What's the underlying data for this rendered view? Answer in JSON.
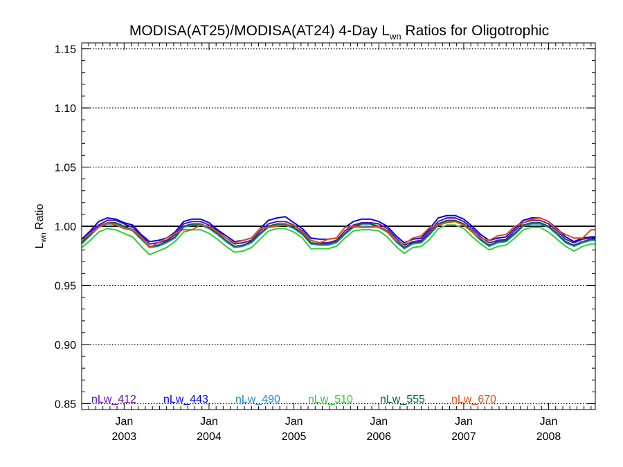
{
  "chart_data": {
    "type": "line",
    "title": {
      "prefix": "MODISA(AT25)/MODISA(AT24) 4-Day L",
      "subscript": "wn",
      "suffix": " Ratios for Oligotrophic"
    },
    "ylabel": {
      "main": "L",
      "subscript": "wn",
      "suffix": " Ratio"
    },
    "xlim": [
      2002.5,
      2008.55
    ],
    "ylim": [
      0.845,
      1.155
    ],
    "yticks": [
      0.85,
      0.9,
      0.95,
      1.0,
      1.05,
      1.1,
      1.15
    ],
    "ytick_labels": [
      "0.85",
      "0.90",
      "0.95",
      "1.00",
      "1.05",
      "1.10",
      "1.15"
    ],
    "xticks": [
      {
        "x": 2003.0,
        "month": "Jan",
        "year": "2003"
      },
      {
        "x": 2004.0,
        "month": "Jan",
        "year": "2004"
      },
      {
        "x": 2005.0,
        "month": "Jan",
        "year": "2005"
      },
      {
        "x": 2006.0,
        "month": "Jan",
        "year": "2006"
      },
      {
        "x": 2007.0,
        "month": "Jan",
        "year": "2007"
      },
      {
        "x": 2008.0,
        "month": "Jan",
        "year": "2008"
      }
    ],
    "grid": "dotted horizontal at major y ticks",
    "reference_line": 1.0,
    "legend_position": "bottom",
    "x": [
      2002.5,
      2002.6,
      2002.7,
      2002.8,
      2002.9,
      2003.0,
      2003.1,
      2003.2,
      2003.3,
      2003.4,
      2003.5,
      2003.6,
      2003.7,
      2003.8,
      2003.9,
      2004.0,
      2004.1,
      2004.2,
      2004.3,
      2004.4,
      2004.5,
      2004.6,
      2004.7,
      2004.8,
      2004.9,
      2005.0,
      2005.1,
      2005.2,
      2005.3,
      2005.4,
      2005.5,
      2005.6,
      2005.7,
      2005.8,
      2005.9,
      2006.0,
      2006.1,
      2006.2,
      2006.3,
      2006.4,
      2006.5,
      2006.6,
      2006.7,
      2006.8,
      2006.9,
      2007.0,
      2007.1,
      2007.2,
      2007.3,
      2007.4,
      2007.5,
      2007.6,
      2007.7,
      2007.8,
      2007.9,
      2008.0,
      2008.1,
      2008.2,
      2008.3,
      2008.4,
      2008.5,
      2008.55
    ],
    "series": [
      {
        "name": "nLw_412",
        "color": "#6a0dad",
        "values": [
          0.988,
          0.995,
          1.001,
          1.005,
          1.005,
          1.002,
          0.999,
          0.992,
          0.985,
          0.986,
          0.988,
          0.993,
          1.002,
          1.004,
          1.004,
          1.001,
          0.996,
          0.99,
          0.985,
          0.986,
          0.988,
          0.996,
          1.002,
          1.004,
          1.004,
          1.001,
          0.996,
          0.988,
          0.986,
          0.986,
          0.988,
          0.996,
          1.001,
          1.003,
          1.003,
          1.002,
          0.998,
          0.99,
          0.984,
          0.987,
          0.988,
          0.996,
          1.004,
          1.007,
          1.007,
          1.004,
          0.998,
          0.991,
          0.986,
          0.988,
          0.989,
          0.996,
          1.003,
          1.005,
          1.005,
          1.002,
          0.996,
          0.989,
          0.986,
          0.989,
          0.99,
          0.99
        ]
      },
      {
        "name": "nLw_443",
        "color": "#0000ee",
        "values": [
          0.989,
          0.996,
          1.004,
          1.007,
          1.006,
          1.003,
          1.001,
          0.993,
          0.987,
          0.988,
          0.99,
          0.995,
          1.004,
          1.006,
          1.006,
          1.003,
          0.997,
          0.992,
          0.987,
          0.988,
          0.99,
          0.998,
          1.005,
          1.007,
          1.008,
          1.003,
          0.998,
          0.99,
          0.989,
          0.989,
          0.99,
          0.999,
          1.004,
          1.006,
          1.006,
          1.004,
          1.0,
          0.992,
          0.986,
          0.989,
          0.99,
          0.998,
          1.007,
          1.009,
          1.009,
          1.006,
          1.0,
          0.993,
          0.988,
          0.99,
          0.991,
          0.998,
          1.005,
          1.007,
          1.007,
          1.004,
          0.998,
          0.991,
          0.987,
          0.99,
          0.991,
          0.991
        ]
      },
      {
        "name": "nLw_490",
        "color": "#2a88c9",
        "values": [
          0.985,
          0.992,
          0.999,
          1.002,
          1.002,
          0.999,
          0.996,
          0.989,
          0.982,
          0.983,
          0.986,
          0.99,
          0.999,
          1.001,
          1.001,
          0.998,
          0.993,
          0.987,
          0.982,
          0.983,
          0.986,
          0.993,
          0.999,
          1.001,
          1.001,
          0.998,
          0.993,
          0.985,
          0.984,
          0.984,
          0.986,
          0.993,
          0.999,
          1.0,
          1.0,
          0.999,
          0.995,
          0.987,
          0.981,
          0.985,
          0.986,
          0.993,
          1.001,
          1.004,
          1.004,
          1.001,
          0.995,
          0.988,
          0.983,
          0.986,
          0.987,
          0.993,
          1.0,
          1.002,
          1.002,
          0.999,
          0.993,
          0.986,
          0.983,
          0.986,
          0.988,
          0.988
        ]
      },
      {
        "name": "nLw_510",
        "color": "#33cc33",
        "values": [
          0.982,
          0.988,
          0.995,
          0.998,
          0.997,
          0.994,
          0.991,
          0.983,
          0.976,
          0.979,
          0.982,
          0.987,
          0.995,
          0.997,
          0.997,
          0.994,
          0.989,
          0.983,
          0.978,
          0.979,
          0.982,
          0.989,
          0.996,
          0.998,
          0.998,
          0.995,
          0.99,
          0.981,
          0.981,
          0.981,
          0.983,
          0.99,
          0.996,
          0.997,
          0.997,
          0.996,
          0.991,
          0.983,
          0.977,
          0.982,
          0.983,
          0.989,
          0.998,
          1.001,
          1.001,
          0.998,
          0.991,
          0.985,
          0.98,
          0.983,
          0.984,
          0.99,
          0.997,
          0.999,
          0.999,
          0.995,
          0.989,
          0.983,
          0.979,
          0.983,
          0.985,
          0.985
        ]
      },
      {
        "name": "nLw_555",
        "color": "#006633",
        "values": [
          0.986,
          0.993,
          1.0,
          1.003,
          1.003,
          1.0,
          0.997,
          0.99,
          0.983,
          0.984,
          0.987,
          0.991,
          1.0,
          1.002,
          1.002,
          0.999,
          0.994,
          0.988,
          0.983,
          0.984,
          0.987,
          0.994,
          1.0,
          1.002,
          1.002,
          0.999,
          0.994,
          0.986,
          0.985,
          0.985,
          0.987,
          0.994,
          1.0,
          1.002,
          1.002,
          1.0,
          0.996,
          0.988,
          0.982,
          0.986,
          0.987,
          0.994,
          1.002,
          1.005,
          1.005,
          1.002,
          0.996,
          0.989,
          0.984,
          0.987,
          0.988,
          0.994,
          1.001,
          1.003,
          1.003,
          1.0,
          0.994,
          0.987,
          0.984,
          0.987,
          0.989,
          0.989
        ]
      },
      {
        "name": "nLw_670",
        "color": "#e0501a",
        "values": [
          0.988,
          0.994,
          0.999,
          1.003,
          1.001,
          0.998,
          0.997,
          0.991,
          0.982,
          0.986,
          0.99,
          0.994,
          0.997,
          0.997,
          1.001,
          1.0,
          0.995,
          0.99,
          0.986,
          0.988,
          0.99,
          0.998,
          0.999,
          1.0,
          1.001,
          1.001,
          0.995,
          0.988,
          0.986,
          0.989,
          0.99,
          0.999,
          1.0,
          0.999,
          0.999,
          1.0,
          0.995,
          0.988,
          0.985,
          0.99,
          0.992,
          0.999,
          1.001,
          1.003,
          1.004,
          1.001,
          0.995,
          0.99,
          0.988,
          0.992,
          0.993,
          1.0,
          1.003,
          1.006,
          1.007,
          1.004,
          0.997,
          0.993,
          0.99,
          0.99,
          0.997,
          0.997
        ]
      }
    ]
  }
}
